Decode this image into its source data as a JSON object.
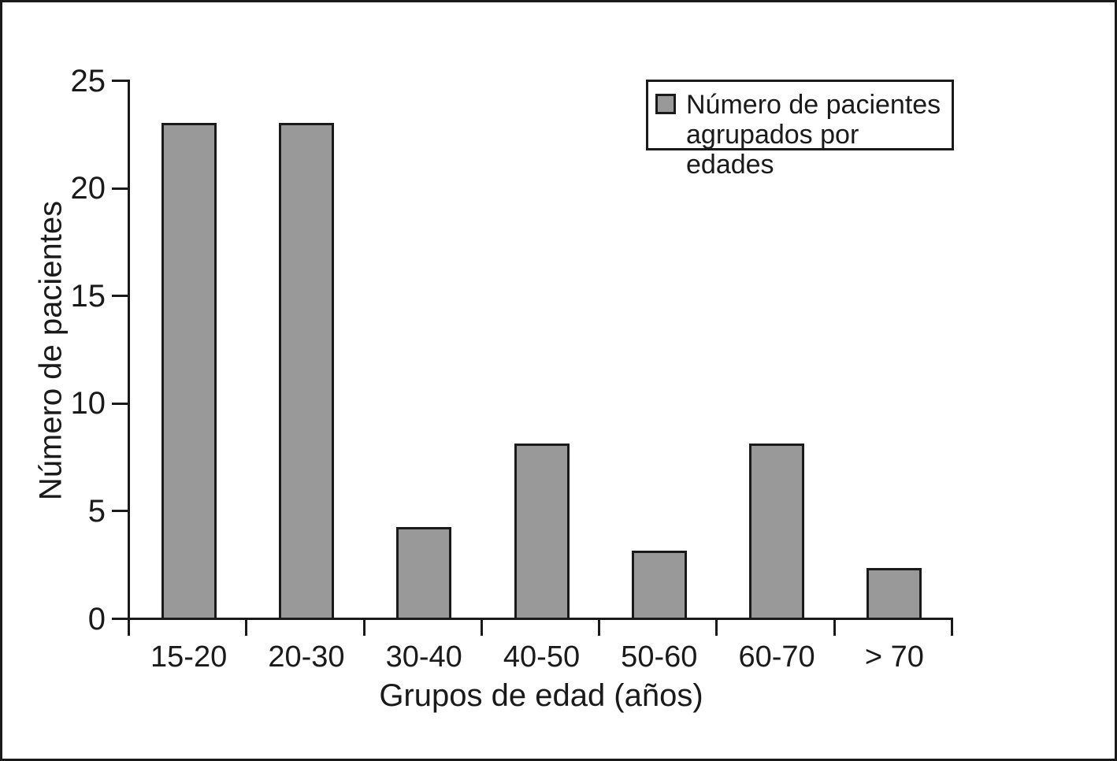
{
  "chart_data": {
    "type": "bar",
    "categories": [
      "15-20",
      "20-30",
      "30-40",
      "40-50",
      "50-60",
      "60-70",
      "> 70"
    ],
    "values": [
      23,
      23,
      4.2,
      8.1,
      3.1,
      8.1,
      2.3
    ],
    "xlabel": "Grupos de edad (años)",
    "ylabel": "Número de pacientes",
    "ylim": [
      0,
      25
    ],
    "yticks": [
      0,
      5,
      10,
      15,
      20,
      25
    ],
    "grid": "off",
    "legend_position": "top-right",
    "legend": {
      "lines": [
        "Número de pacientes",
        "agrupados por edades"
      ]
    },
    "colors": {
      "bar_fill": "#999999",
      "bar_border": "#1a1a1a",
      "axis": "#1a1a1a",
      "text": "#1a1a1a",
      "background": "#ffffff"
    }
  }
}
